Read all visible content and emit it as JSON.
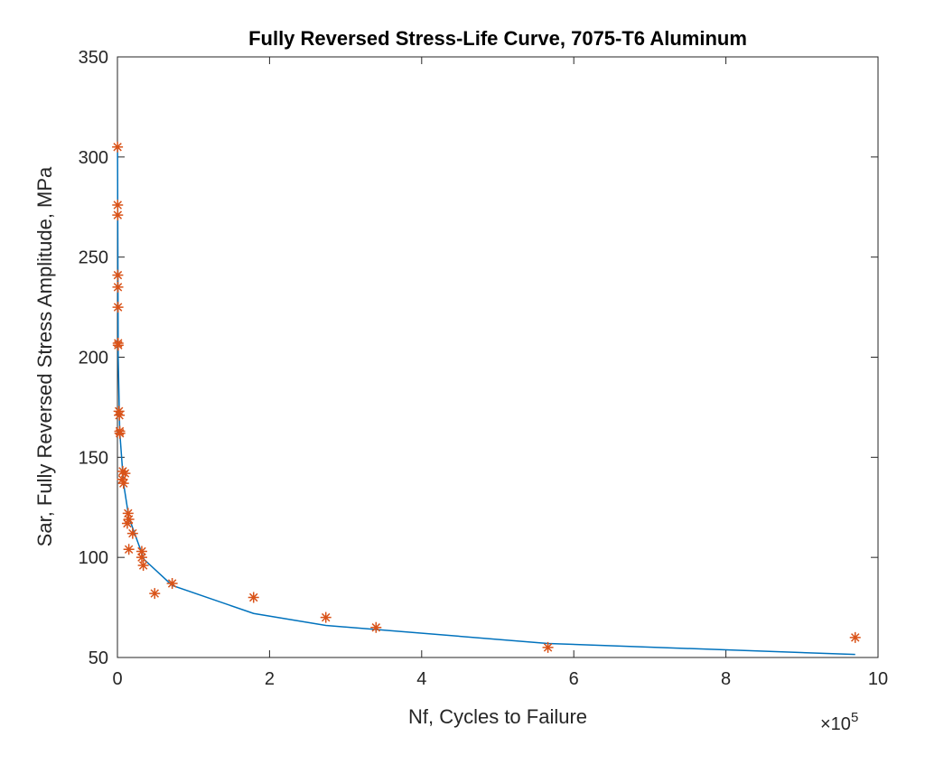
{
  "chart_data": {
    "type": "scatter",
    "title": "Fully Reversed Stress-Life Curve, 7075-T6 Aluminum",
    "xlabel": "Nf, Cycles to Failure",
    "ylabel": "Sar, Fully Reversed Stress Amplitude, MPa",
    "x_multiplier": "×10",
    "x_multiplier_exponent": "5",
    "xlim": [
      0,
      10
    ],
    "ylim": [
      50,
      350
    ],
    "xticks": [
      0,
      2,
      4,
      6,
      8,
      10
    ],
    "yticks": [
      50,
      100,
      150,
      200,
      250,
      300,
      350
    ],
    "grid": false,
    "colors": {
      "points": "#D95319",
      "curve": "#0072BD",
      "axes": "#262626"
    },
    "series": [
      {
        "type": "scatter",
        "marker": "asterisk",
        "points": [
          [
            0.0013,
            305
          ],
          [
            0.003,
            276
          ],
          [
            0.0035,
            271
          ],
          [
            0.005,
            241
          ],
          [
            0.006,
            235
          ],
          [
            0.007,
            225
          ],
          [
            0.009,
            207
          ],
          [
            0.01,
            206
          ],
          [
            0.02,
            173
          ],
          [
            0.025,
            171
          ],
          [
            0.03,
            163
          ],
          [
            0.032,
            162
          ],
          [
            0.07,
            143
          ],
          [
            0.1,
            142
          ],
          [
            0.065,
            139
          ],
          [
            0.08,
            137
          ],
          [
            0.14,
            122
          ],
          [
            0.15,
            119
          ],
          [
            0.13,
            117
          ],
          [
            0.2,
            112
          ],
          [
            0.15,
            104
          ],
          [
            0.32,
            103
          ],
          [
            0.32,
            100
          ],
          [
            0.34,
            96
          ],
          [
            0.49,
            82
          ],
          [
            0.72,
            87
          ],
          [
            1.79,
            80
          ],
          [
            2.74,
            70
          ],
          [
            3.4,
            65
          ],
          [
            5.66,
            55
          ],
          [
            9.7,
            60
          ]
        ]
      },
      {
        "type": "line",
        "points": [
          [
            0.0013,
            305
          ],
          [
            0.01,
            200
          ],
          [
            0.03,
            163
          ],
          [
            0.08,
            137
          ],
          [
            0.15,
            120
          ],
          [
            0.35,
            99
          ],
          [
            0.72,
            86
          ],
          [
            1.79,
            72
          ],
          [
            2.74,
            66
          ],
          [
            3.4,
            64
          ],
          [
            5.66,
            57
          ],
          [
            9.7,
            51.5
          ]
        ]
      }
    ]
  }
}
